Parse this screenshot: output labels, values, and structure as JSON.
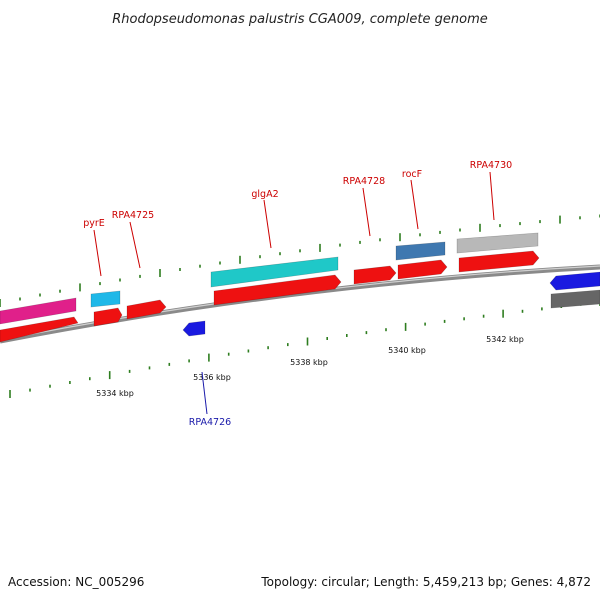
{
  "title": "Rhodopseudomonas palustris CGA009, complete genome",
  "footer": {
    "accession": "Accession: NC_005296",
    "summary": "Topology: circular; Length: 5,459,213 bp; Genes: 4,872"
  },
  "colors": {
    "backbone": "#8a8a8a",
    "tick": "#2e7d1f",
    "label_forward": "#cc0000",
    "label_reverse": "#1a1aaa"
  },
  "scale_labels": [
    "5334 kbp",
    "5336 kbp",
    "5338 kbp",
    "5340 kbp",
    "5342 kbp"
  ],
  "gene_labels": [
    {
      "text": "pyrE",
      "strand": "forward"
    },
    {
      "text": "RPA4725",
      "strand": "forward"
    },
    {
      "text": "RPA4726",
      "strand": "reverse"
    },
    {
      "text": "glgA2",
      "strand": "forward"
    },
    {
      "text": "RPA4728",
      "strand": "forward"
    },
    {
      "text": "rocF",
      "strand": "forward"
    },
    {
      "text": "RPA4730",
      "strand": "forward"
    }
  ],
  "features": [
    {
      "name": "feature-magenta-left",
      "color": "#e0208a",
      "strand": "forward"
    },
    {
      "name": "cds-left",
      "color": "#ee1111",
      "strand": "forward"
    },
    {
      "name": "feature-pyrE",
      "color": "#1fb8e8",
      "strand": "forward"
    },
    {
      "name": "cds-pyrE",
      "color": "#ee1111",
      "strand": "forward"
    },
    {
      "name": "cds-RPA4725",
      "color": "#ee1111",
      "strand": "forward"
    },
    {
      "name": "cds-RPA4726",
      "color": "#1a1ae0",
      "strand": "reverse"
    },
    {
      "name": "feature-glgA2",
      "color": "#1fc8c8",
      "strand": "forward"
    },
    {
      "name": "cds-glgA2",
      "color": "#ee1111",
      "strand": "forward"
    },
    {
      "name": "cds-RPA4728",
      "color": "#ee1111",
      "strand": "forward"
    },
    {
      "name": "feature-rocF",
      "color": "#3f78b0",
      "strand": "forward"
    },
    {
      "name": "cds-rocF",
      "color": "#ee1111",
      "strand": "forward"
    },
    {
      "name": "feature-RPA4730",
      "color": "#b8b8b8",
      "strand": "forward"
    },
    {
      "name": "cds-RPA4730",
      "color": "#ee1111",
      "strand": "forward"
    },
    {
      "name": "cds-right-blue",
      "color": "#1a1ae0",
      "strand": "reverse"
    },
    {
      "name": "feature-right-gray",
      "color": "#666666",
      "strand": "reverse"
    }
  ]
}
